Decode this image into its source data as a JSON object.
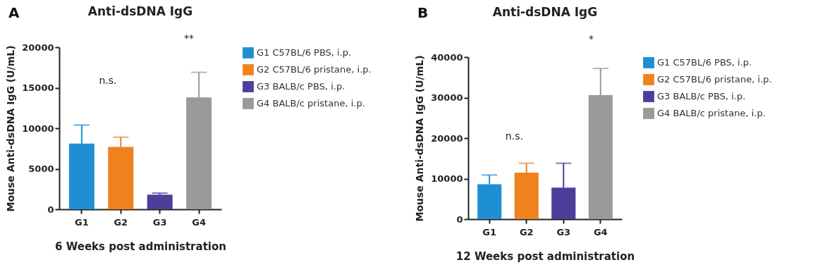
{
  "chart_data": [
    {
      "type": "bar",
      "title": "Anti-dsDNA IgG",
      "xlabel": "6 Weeks post administration",
      "ylabel": "Mouse Anti-dsDNA IgG (U/mL)",
      "categories": [
        "G1",
        "G2",
        "G3",
        "G4"
      ],
      "ylim": [
        0,
        20000
      ],
      "yticks": [
        0,
        5000,
        10000,
        15000,
        20000
      ],
      "legend": "top right",
      "series": [
        {
          "name": "G1 C57BL/6 PBS, i.p.",
          "color": "#1f8fd4",
          "values": [
            8100,
            null,
            null,
            null
          ],
          "errors": [
            [
              8100,
              10400
            ],
            null,
            null,
            null
          ]
        },
        {
          "name": "G2 C57BL/6 pristane, i.p.",
          "color": "#f0821e",
          "values": [
            null,
            7700,
            null,
            null
          ],
          "errors": [
            null,
            [
              7700,
              8900
            ],
            null,
            null
          ]
        },
        {
          "name": "G3 BALB/c PBS, i.p.",
          "color": "#4b3f9a",
          "values": [
            null,
            null,
            1800,
            null
          ],
          "errors": [
            null,
            null,
            [
              1800,
              2000
            ],
            null
          ]
        },
        {
          "name": "G4 BALB/c pristane, i.p.",
          "color": "#9a9a9a",
          "values": [
            null,
            null,
            null,
            13800
          ],
          "errors": [
            null,
            null,
            null,
            [
              13800,
              16900
            ]
          ]
        }
      ],
      "annotations": [
        "A",
        "n.s.",
        "**"
      ]
    },
    {
      "type": "bar",
      "title": "Anti-dsDNA IgG",
      "xlabel": "12 Weeks post administration",
      "ylabel": "Mouse Anti-dsDNA IgG (U/mL)",
      "categories": [
        "G1",
        "G2",
        "G3",
        "G4"
      ],
      "ylim": [
        0,
        40000
      ],
      "yticks": [
        0,
        10000,
        20000,
        30000,
        40000
      ],
      "legend": "top right",
      "series": [
        {
          "name": "G1 C57BL/6 PBS, i.p.",
          "color": "#1f8fd4",
          "values": [
            8600,
            null,
            null,
            null
          ],
          "errors": [
            [
              8600,
              10900
            ],
            null,
            null,
            null
          ]
        },
        {
          "name": "G2 C57BL/6 pristane, i.p.",
          "color": "#f0821e",
          "values": [
            null,
            11500,
            null,
            null
          ],
          "errors": [
            null,
            [
              11500,
              13800
            ],
            null,
            null
          ]
        },
        {
          "name": "G3 BALB/c PBS, i.p.",
          "color": "#4b3f9a",
          "values": [
            null,
            null,
            7800,
            null
          ],
          "errors": [
            null,
            null,
            [
              7800,
              13800
            ],
            null
          ]
        },
        {
          "name": "G4 BALB/c pristane, i.p.",
          "color": "#9a9a9a",
          "values": [
            null,
            null,
            null,
            30600
          ],
          "errors": [
            null,
            null,
            null,
            [
              30600,
              37200
            ]
          ]
        }
      ],
      "annotations": [
        "B",
        "n.s.",
        "*"
      ]
    }
  ]
}
